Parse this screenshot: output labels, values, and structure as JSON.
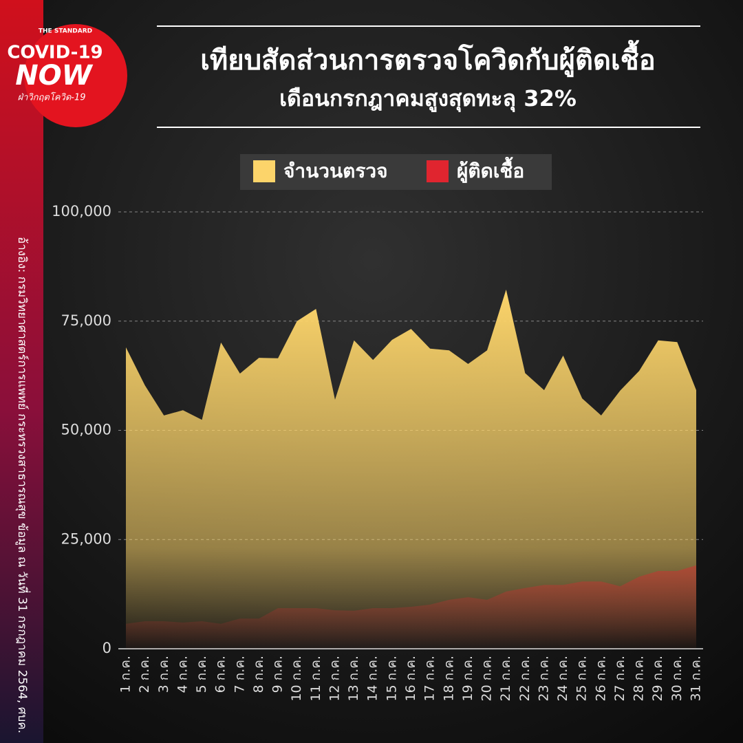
{
  "logo": {
    "brand": "THE STANDARD",
    "line1": "COVID-19",
    "line2": "NOW",
    "tagline": "ฝ่าวิกฤตโควิด-19"
  },
  "source": "อ้างอิง: กรมวิทยาศาสตร์การแพทย์ กระทรวงสาธารณสุข ข้อมูล ณ วันที่ 31 กรกฎาคม 2564, ศบค.",
  "chart_data": {
    "type": "area",
    "title": "เทียบสัดส่วนการตรวจโควิดกับผู้ติดเชื้อ",
    "subtitle": "เดือนกรกฎาคมสูงสุดทะลุ 32%",
    "categories": [
      "1 ก.ค.",
      "2 ก.ค.",
      "3 ก.ค.",
      "4 ก.ค.",
      "5 ก.ค.",
      "6 ก.ค.",
      "7 ก.ค.",
      "8 ก.ค.",
      "9 ก.ค.",
      "10 ก.ค.",
      "11 ก.ค.",
      "12 ก.ค.",
      "13 ก.ค.",
      "14 ก.ค.",
      "15 ก.ค.",
      "16 ก.ค.",
      "17 ก.ค.",
      "18 ก.ค.",
      "19 ก.ค.",
      "20 ก.ค.",
      "21 ก.ค.",
      "22 ก.ค.",
      "23 ก.ค.",
      "24 ก.ค.",
      "25 ก.ค.",
      "26 ก.ค.",
      "27 ก.ค.",
      "28 ก.ค.",
      "29 ก.ค.",
      "30 ก.ค.",
      "31 ก.ค."
    ],
    "series": [
      {
        "name": "จำนวนตรวจ",
        "color": "#fcd46a",
        "values": [
          69000,
          60300,
          53400,
          54600,
          52400,
          70100,
          63000,
          66600,
          66500,
          75000,
          77800,
          57000,
          70600,
          66100,
          70700,
          73200,
          68700,
          68300,
          65200,
          68300,
          82200,
          63100,
          59200,
          67100,
          57300,
          53400,
          59100,
          63600,
          70600,
          70200,
          59200
        ]
      },
      {
        "name": "ผู้ติดเชื้อ",
        "color": "#e0252f",
        "values": [
          5700,
          6300,
          6300,
          6000,
          6300,
          5700,
          6900,
          6900,
          9300,
          9300,
          9300,
          8800,
          8700,
          9300,
          9300,
          9600,
          10100,
          11200,
          11800,
          11200,
          13100,
          13900,
          14600,
          14600,
          15400,
          15400,
          14300,
          16500,
          17800,
          17800,
          19100
        ]
      }
    ],
    "ylim": [
      0,
      100000
    ],
    "yticks": [
      0,
      {
        "value": 25000,
        "label": "25,000"
      },
      {
        "value": 50000,
        "label": "50,000"
      },
      {
        "value": 75000,
        "label": "75,000"
      },
      {
        "value": 100000,
        "label": "100,000"
      }
    ],
    "grid": true
  }
}
